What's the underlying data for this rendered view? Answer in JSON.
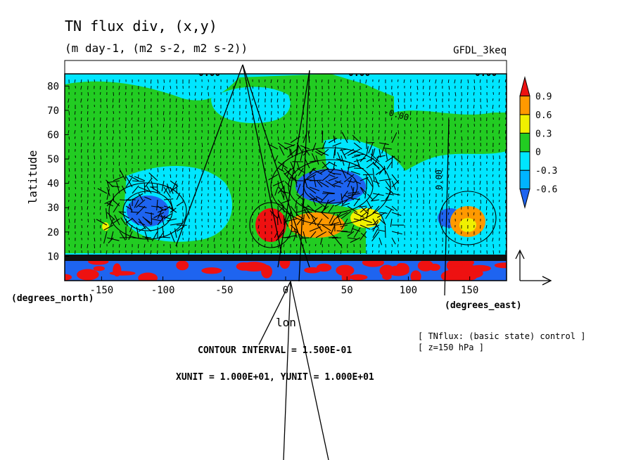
{
  "chart_data": {
    "type": "heatmap",
    "title": "TN flux div, (x,y)",
    "subtitle": "(m day-1, (m2 s-2, m2 s-2))",
    "model": "GFDL_3keq",
    "xlabel": "lon",
    "ylabel": "latitude",
    "x_unit_label": "(degrees_east)",
    "y_unit_label": "(degrees_north)",
    "xlim": [
      -180,
      180
    ],
    "ylim": [
      0,
      85
    ],
    "x_ticks": [
      "-150",
      "-100",
      "-50",
      "0",
      "50",
      "100",
      "150"
    ],
    "x_tick_values": [
      -150,
      -100,
      -50,
      0,
      50,
      100,
      150
    ],
    "y_ticks": [
      "10",
      "20",
      "30",
      "40",
      "50",
      "60",
      "70",
      "80"
    ],
    "y_tick_values": [
      10,
      20,
      30,
      40,
      50,
      60,
      70,
      80
    ],
    "colorbar": {
      "labels": [
        "0.9",
        "0.6",
        "0.3",
        "0",
        "-0.3",
        "-0.6"
      ],
      "levels": [
        -0.9,
        -0.6,
        -0.3,
        0,
        0.3,
        0.6,
        0.9
      ],
      "colors": [
        "#1e64f0",
        "#00b4ff",
        "#00e6ff",
        "#22cc22",
        "#f0f000",
        "#ff9900",
        "#ee1111"
      ]
    },
    "contour_labels": [
      "0.00",
      "0.00",
      "0.00",
      "-0.00",
      "0.00"
    ],
    "contour_interval_text": "CONTOUR INTERVAL = 1.500E-01",
    "unit_vector_text": "XUNIT = 1.000E+01, YUNIT = 1.000E+01",
    "annotations": [
      "[ TNflux: (basic state) control ]",
      "[ z=150 hPa ]"
    ],
    "regions": [
      {
        "lon": [
          -180,
          180
        ],
        "lat": [
          0,
          10
        ],
        "value": -0.6
      },
      {
        "lon": [
          -180,
          180
        ],
        "lat": [
          10,
          85
        ],
        "value": 0.0
      },
      {
        "lon": [
          -100,
          -20
        ],
        "lat": [
          15,
          45
        ],
        "value": -0.3
      },
      {
        "lon": [
          -70,
          -20
        ],
        "lat": [
          60,
          80
        ],
        "value": -0.3
      },
      {
        "lon": [
          -30,
          5
        ],
        "lat": [
          15,
          35
        ],
        "value": 0.9
      },
      {
        "lon": [
          10,
          70
        ],
        "lat": [
          25,
          45
        ],
        "value": -0.6
      },
      {
        "lon": [
          20,
          80
        ],
        "lat": [
          20,
          35
        ],
        "value": 0.6
      },
      {
        "lon": [
          140,
          180
        ],
        "lat": [
          18,
          35
        ],
        "value": 0.6
      },
      {
        "lon": [
          105,
          180
        ],
        "lat": [
          60,
          85
        ],
        "value": -0.3
      }
    ]
  }
}
